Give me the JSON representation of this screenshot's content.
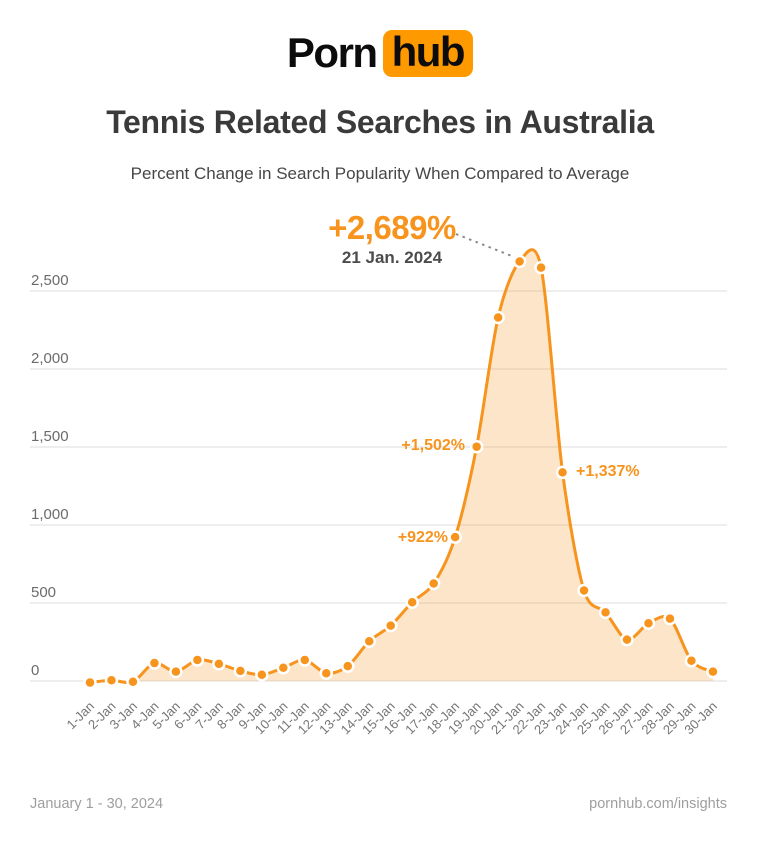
{
  "logo": {
    "part1": "Porn",
    "part2": "hub"
  },
  "header": {
    "title": "Tennis Related Searches in Australia",
    "subtitle": "Percent Change in Search Popularity When Compared to Average"
  },
  "footer": {
    "date_range": "January 1 - 30, 2024",
    "site": "pornhub.com/insights"
  },
  "colors": {
    "accent": "#f7941e",
    "area_fill": "rgba(247,148,30,0.24)",
    "brand_box": "#ff9900",
    "grid": "#dcdcdc",
    "connector": "#8a8a8a",
    "point_stroke": "#ffffff"
  },
  "chart_data": {
    "type": "area",
    "title": "Tennis Related Searches in Australia",
    "subtitle": "Percent Change in Search Popularity When Compared to Average",
    "xlabel": "",
    "ylabel": "",
    "x": [
      "1-Jan",
      "2-Jan",
      "3-Jan",
      "4-Jan",
      "5-Jan",
      "6-Jan",
      "7-Jan",
      "8-Jan",
      "9-Jan",
      "10-Jan",
      "11-Jan",
      "12-Jan",
      "13-Jan",
      "14-Jan",
      "15-Jan",
      "16-Jan",
      "17-Jan",
      "18-Jan",
      "19-Jan",
      "20-Jan",
      "21-Jan",
      "22-Jan",
      "23-Jan",
      "24-Jan",
      "25-Jan",
      "26-Jan",
      "27-Jan",
      "28-Jan",
      "29-Jan",
      "30-Jan"
    ],
    "values": [
      -10,
      5,
      -5,
      115,
      60,
      135,
      110,
      65,
      40,
      85,
      135,
      50,
      95,
      255,
      355,
      505,
      625,
      922,
      1502,
      2330,
      2689,
      2650,
      1337,
      580,
      440,
      265,
      370,
      400,
      130,
      60
    ],
    "yticks": [
      0,
      500,
      1000,
      1500,
      2000,
      2500
    ],
    "ytick_labels": [
      "0",
      "500",
      "1,000",
      "1,500",
      "2,000",
      "2,500"
    ],
    "ylim": [
      -60,
      2750
    ],
    "grid": true,
    "legend_position": "none",
    "annotations": {
      "peak": {
        "x": "21-Jan",
        "value": 2689,
        "value_label": "+2,689%",
        "date_label": "21 Jan. 2024"
      },
      "points": [
        {
          "x": "18-Jan",
          "value": 922,
          "label": "+922%",
          "side": "left"
        },
        {
          "x": "19-Jan",
          "value": 1502,
          "label": "+1,502%",
          "side": "left"
        },
        {
          "x": "23-Jan",
          "value": 1337,
          "label": "+1,337%",
          "side": "right"
        }
      ]
    }
  }
}
